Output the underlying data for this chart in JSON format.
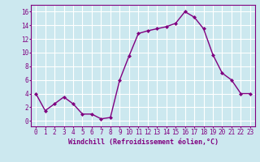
{
  "x": [
    0,
    1,
    2,
    3,
    4,
    5,
    6,
    7,
    8,
    9,
    10,
    11,
    12,
    13,
    14,
    15,
    16,
    17,
    18,
    19,
    20,
    21,
    22,
    23
  ],
  "y": [
    4,
    1.5,
    2.5,
    3.5,
    2.5,
    1.0,
    1.0,
    0.3,
    0.5,
    6.0,
    9.5,
    12.8,
    13.2,
    13.5,
    13.8,
    14.3,
    16.0,
    15.2,
    13.5,
    9.7,
    7.0,
    6.0,
    4.0,
    4.0
  ],
  "line_color": "#800080",
  "marker": "D",
  "marker_size": 2.0,
  "linewidth": 1.0,
  "bg_color": "#cce8ef",
  "grid_color": "#ffffff",
  "xlabel": "Windchill (Refroidissement éolien,°C)",
  "xlabel_fontsize": 6.0,
  "xlim": [
    -0.5,
    23.5
  ],
  "ylim": [
    -0.8,
    17.0
  ],
  "yticks": [
    0,
    2,
    4,
    6,
    8,
    10,
    12,
    14,
    16
  ],
  "xticks": [
    0,
    1,
    2,
    3,
    4,
    5,
    6,
    7,
    8,
    9,
    10,
    11,
    12,
    13,
    14,
    15,
    16,
    17,
    18,
    19,
    20,
    21,
    22,
    23
  ],
  "tick_fontsize": 5.5,
  "tick_color": "#800080",
  "label_color": "#800080",
  "spine_color": "#800080"
}
